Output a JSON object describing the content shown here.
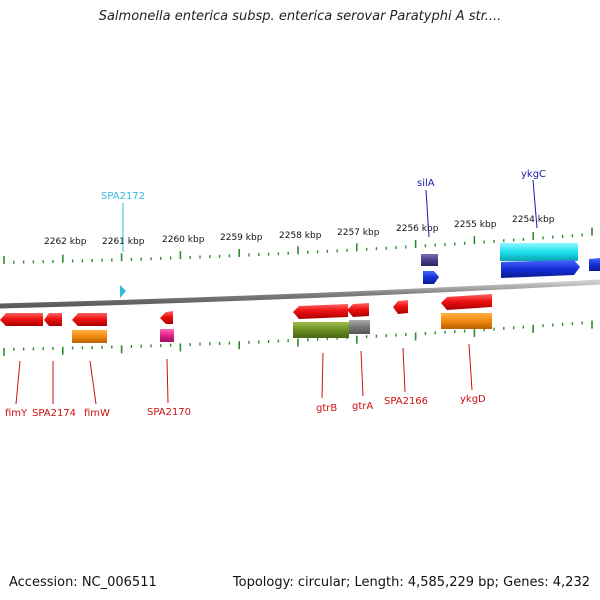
{
  "title": "Salmonella enterica subsp. enterica serovar Paratyphi A str....",
  "footer": {
    "accession": "Accession: NC_006511",
    "summary": "Topology: circular; Length: 4,585,229 bp; Genes: 4,232"
  },
  "scale_labels": [
    "2262 kbp",
    "2261 kbp",
    "2260 kbp",
    "2259 kbp",
    "2258 kbp",
    "2257 kbp",
    "2256 kbp",
    "2255 kbp",
    "2254 kbp"
  ],
  "top_genes": [
    {
      "name": "SPA2172",
      "color": "#33bbdd"
    },
    {
      "name": "silA",
      "color": "#1a1aaa"
    },
    {
      "name": "ykgC",
      "color": "#1a1aaa"
    }
  ],
  "bottom_genes": [
    {
      "name": "fimY",
      "color": "#cc1111"
    },
    {
      "name": "SPA2174",
      "color": "#cc1111"
    },
    {
      "name": "fimW",
      "color": "#cc1111"
    },
    {
      "name": "SPA2170",
      "color": "#cc1111"
    },
    {
      "name": "gtrB",
      "color": "#cc1111"
    },
    {
      "name": "gtrA",
      "color": "#cc1111"
    },
    {
      "name": "SPA2166",
      "color": "#cc1111"
    },
    {
      "name": "ykgD",
      "color": "#cc1111"
    }
  ],
  "colors": {
    "backbone": "#8a8a8a",
    "tick": "#2e8b2e",
    "red": "#e8141c",
    "orange": "#f08a10",
    "blue": "#1530d8",
    "cyan": "#1ce0ee",
    "olive": "#6b8e23",
    "gray": "#777777",
    "magenta": "#e0208a",
    "purple": "#4a3f8a"
  }
}
